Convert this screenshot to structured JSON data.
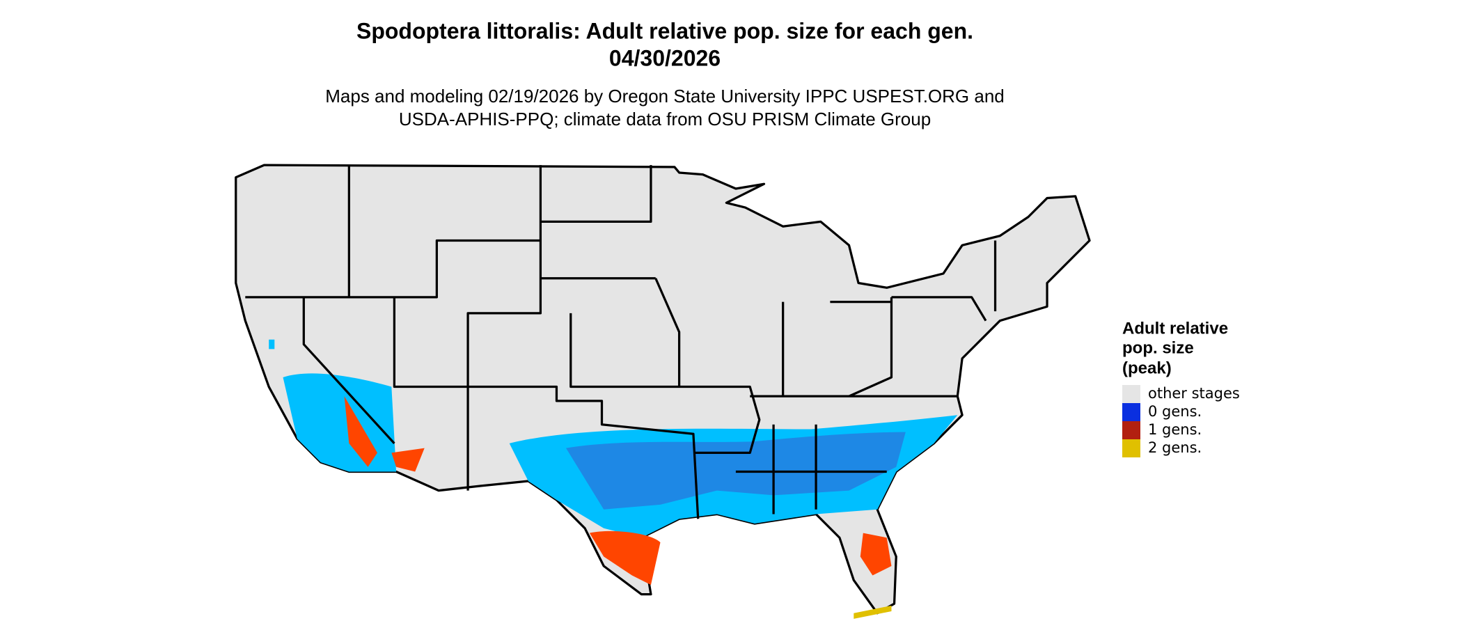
{
  "title": [
    "Spodoptera littoralis: Adult relative pop. size for each gen.",
    "04/30/2026"
  ],
  "subtitle": [
    "Maps and modeling 02/19/2026 by Oregon State University IPPC USPEST.ORG and",
    "USDA-APHIS-PPQ; climate data from OSU PRISM Climate Group"
  ],
  "legend": {
    "title": [
      "Adult relative",
      "pop. size",
      "(peak)"
    ],
    "items": [
      {
        "label": "other stages",
        "color": "#e5e5e5"
      },
      {
        "label": "0 gens.",
        "color": "#0a2fe0"
      },
      {
        "label": "1 gens.",
        "color": "#b22010"
      },
      {
        "label": "2 gens.",
        "color": "#e0c000"
      }
    ]
  }
}
